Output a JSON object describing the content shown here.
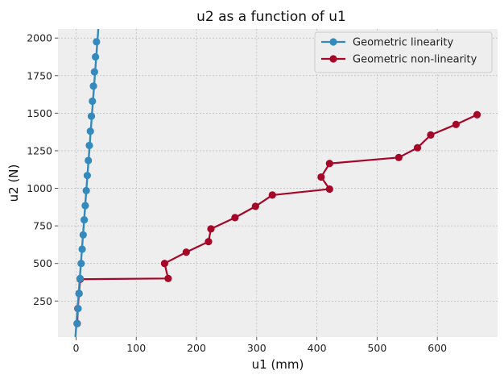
{
  "chart_data": {
    "type": "line",
    "title": "u2 as a function of u1",
    "xlabel": "u1 (mm)",
    "ylabel": "u2 (N)",
    "xlim": [
      -30,
      700
    ],
    "ylim": [
      10,
      2060
    ],
    "xticks": [
      0,
      100,
      200,
      300,
      400,
      500,
      600
    ],
    "yticks": [
      250,
      500,
      750,
      1000,
      1250,
      1500,
      1750,
      2000
    ],
    "grid": true,
    "legend_position": "top-right",
    "series": [
      {
        "name": "Geometric non-linearity",
        "color": "#A60628",
        "points": [
          [
            2,
            100
          ],
          [
            3,
            200
          ],
          [
            5,
            300
          ],
          [
            7,
            395
          ],
          [
            153,
            400
          ],
          [
            147,
            500
          ],
          [
            183,
            575
          ],
          [
            220,
            645
          ],
          [
            224,
            730
          ],
          [
            264,
            805
          ],
          [
            298,
            880
          ],
          [
            326,
            955
          ],
          [
            421,
            995
          ],
          [
            407,
            1075
          ],
          [
            421,
            1165
          ],
          [
            536,
            1205
          ],
          [
            567,
            1270
          ],
          [
            589,
            1355
          ],
          [
            631,
            1425
          ],
          [
            666,
            1490
          ]
        ]
      },
      {
        "name": "Geometric linearity",
        "color": "#348ABD",
        "points": [
          [
            1.7,
            100
          ],
          [
            3.4,
            200
          ],
          [
            5.1,
            300
          ],
          [
            6.8,
            400
          ],
          [
            8.5,
            500
          ],
          [
            10.2,
            595
          ],
          [
            11.9,
            690
          ],
          [
            13.6,
            790
          ],
          [
            15.3,
            885
          ],
          [
            17.0,
            985
          ],
          [
            18.7,
            1085
          ],
          [
            20.4,
            1185
          ],
          [
            22.1,
            1285
          ],
          [
            23.8,
            1380
          ],
          [
            25.5,
            1480
          ],
          [
            27.2,
            1580
          ],
          [
            28.9,
            1680
          ],
          [
            30.6,
            1775
          ],
          [
            32.3,
            1875
          ],
          [
            34.0,
            1975
          ]
        ],
        "line_extent": [
          [
            -1,
            10
          ],
          [
            37,
            2060
          ]
        ]
      }
    ],
    "legend": [
      {
        "label": "Geometric linearity",
        "color": "#348ABD"
      },
      {
        "label": "Geometric non-linearity",
        "color": "#A60628"
      }
    ]
  }
}
